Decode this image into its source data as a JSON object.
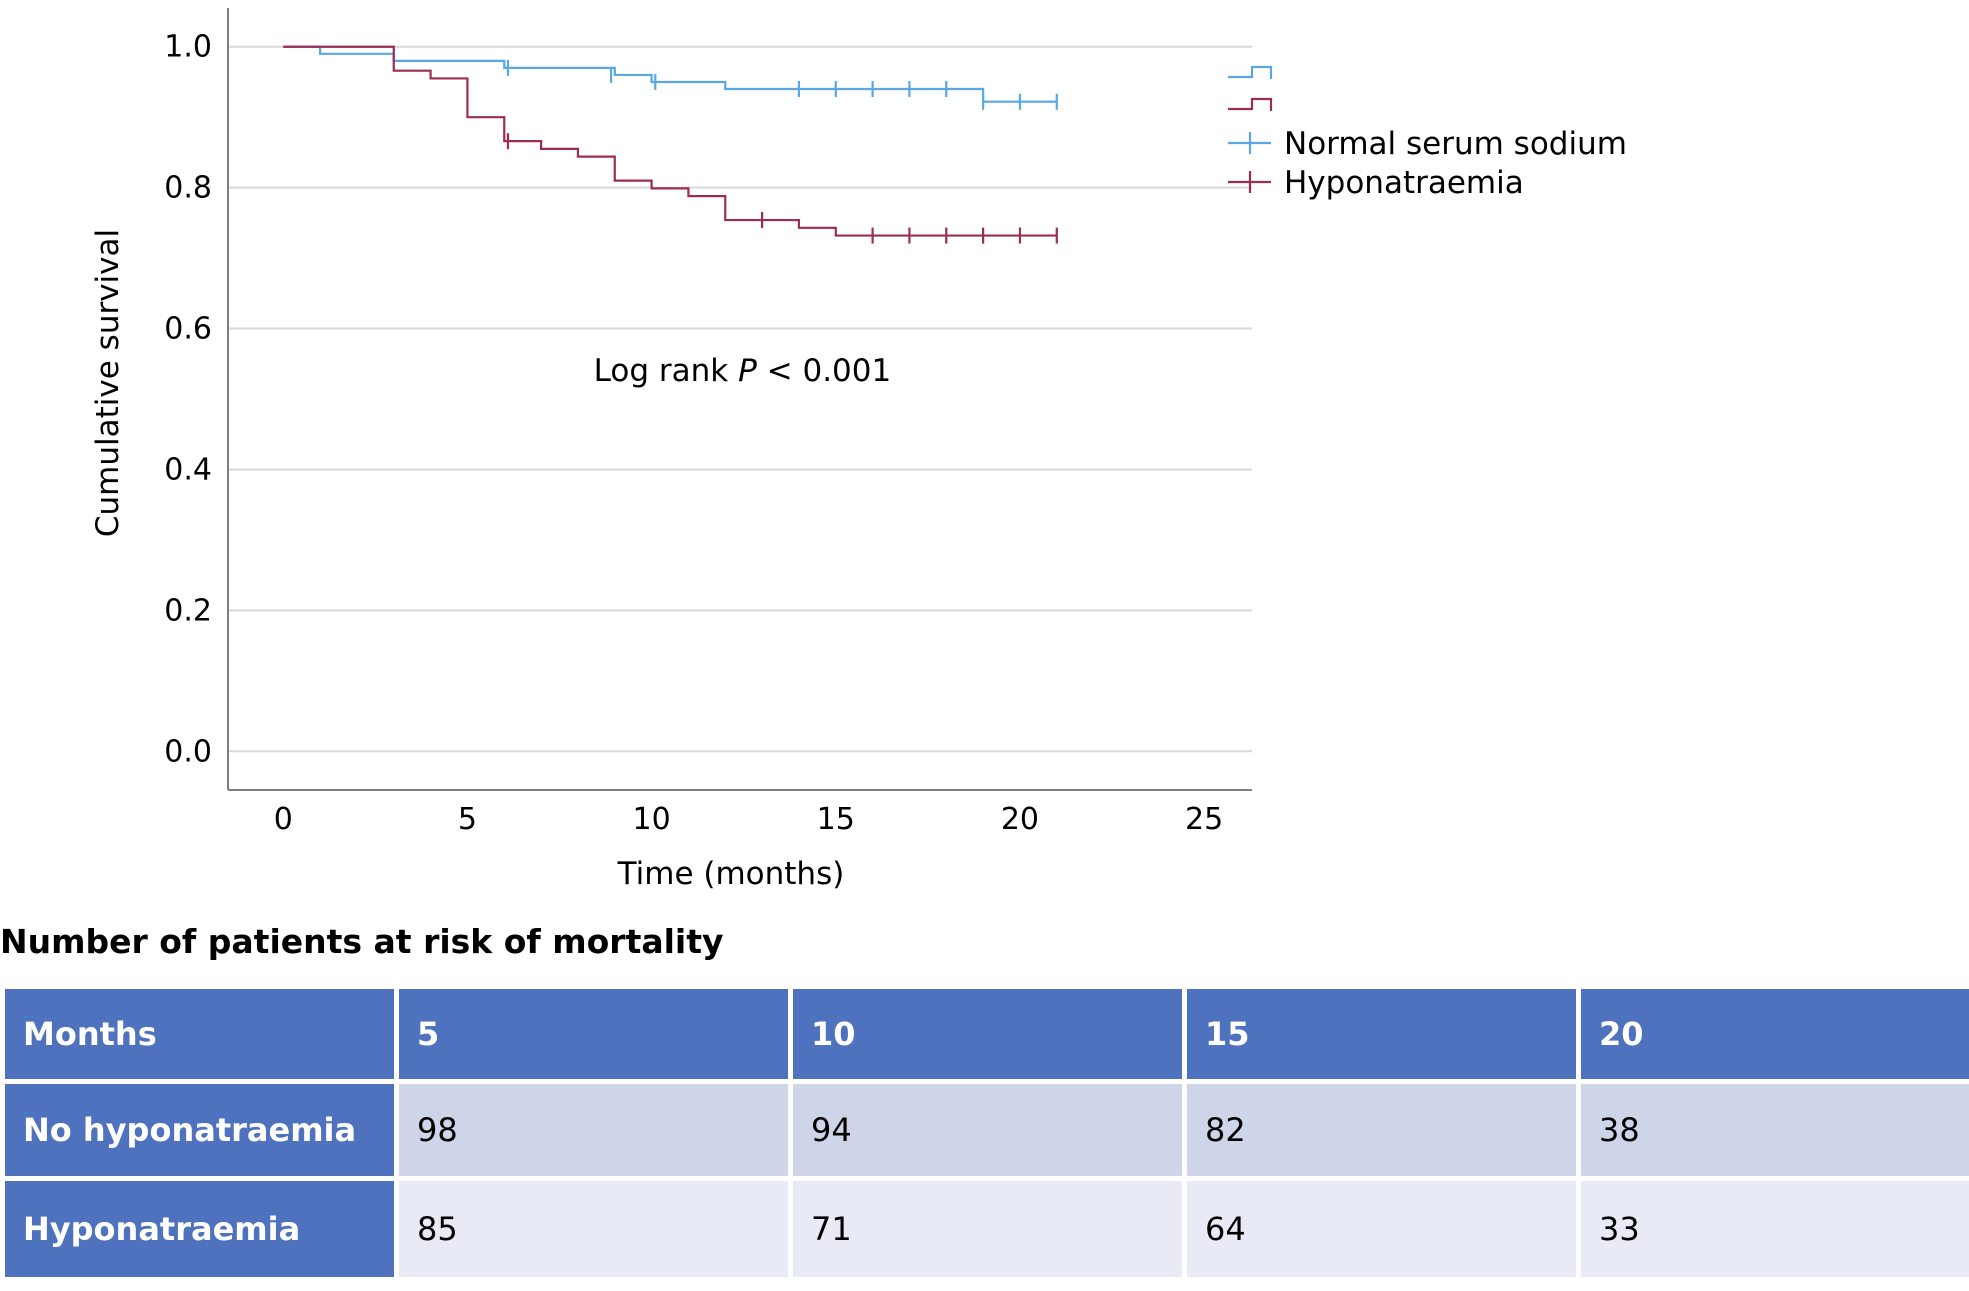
{
  "chart_data": {
    "type": "line",
    "subtype": "kaplan-meier",
    "xlabel": "Time (months)",
    "ylabel": "Cumulative survival",
    "xlim": [
      -1.5,
      26.3
    ],
    "ylim": [
      -0.055,
      1.055
    ],
    "x_ticks": [
      "0",
      "5",
      "10",
      "15",
      "20",
      "25"
    ],
    "y_ticks": [
      "0.0",
      "0.2",
      "0.4",
      "0.6",
      "0.8",
      "1.0"
    ],
    "grid": "horizontal",
    "legend_position": "right",
    "annotation": {
      "prefix": "Log rank ",
      "italic": "P",
      "suffix": " < 0.001",
      "x": 12.5,
      "y": 0.54
    },
    "series": [
      {
        "name": "Normal serum sodium",
        "color": "#5aa7e6",
        "steps": [
          [
            0,
            1.0
          ],
          [
            1,
            0.99
          ],
          [
            3,
            0.98
          ],
          [
            6,
            0.97
          ],
          [
            9,
            0.96
          ],
          [
            10,
            0.95
          ],
          [
            12,
            0.94
          ],
          [
            19,
            0.922
          ],
          [
            21,
            0.922
          ]
        ],
        "censored": [
          [
            6.1,
            0.97
          ],
          [
            8.9,
            0.96
          ],
          [
            10.1,
            0.95
          ],
          [
            14,
            0.94
          ],
          [
            15,
            0.94
          ],
          [
            16,
            0.94
          ],
          [
            17,
            0.94
          ],
          [
            18,
            0.94
          ],
          [
            19,
            0.922
          ],
          [
            20,
            0.922
          ],
          [
            21,
            0.922
          ]
        ]
      },
      {
        "name": "Hyponatraemia",
        "color": "#9b2d55",
        "steps": [
          [
            0,
            1.0
          ],
          [
            3,
            0.966
          ],
          [
            4,
            0.955
          ],
          [
            5,
            0.9
          ],
          [
            6,
            0.866
          ],
          [
            7,
            0.855
          ],
          [
            8,
            0.844
          ],
          [
            9,
            0.81
          ],
          [
            10,
            0.799
          ],
          [
            11,
            0.788
          ],
          [
            12,
            0.754
          ],
          [
            14,
            0.743
          ],
          [
            15,
            0.732
          ],
          [
            21,
            0.732
          ]
        ],
        "censored": [
          [
            6.1,
            0.866
          ],
          [
            13,
            0.754
          ],
          [
            16,
            0.732
          ],
          [
            17,
            0.732
          ],
          [
            18,
            0.732
          ],
          [
            19,
            0.732
          ],
          [
            20,
            0.732
          ],
          [
            21,
            0.732
          ]
        ]
      }
    ]
  },
  "risk_table": {
    "title": "Number of patients at risk of mortality",
    "header": [
      "Months",
      "5",
      "10",
      "15",
      "20"
    ],
    "rows": [
      {
        "label": "No hyponatraemia",
        "values": [
          "98",
          "94",
          "82",
          "38"
        ]
      },
      {
        "label": "Hyponatraemia",
        "values": [
          "85",
          "71",
          "64",
          "33"
        ]
      }
    ]
  }
}
